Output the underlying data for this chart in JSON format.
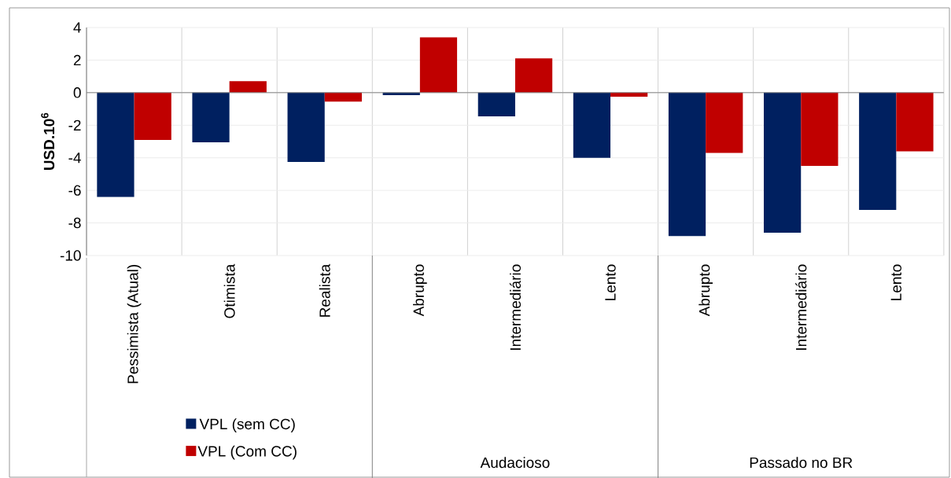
{
  "chart_data": {
    "type": "bar",
    "ylabel": "USD.10$^{6}$",
    "categories": [
      "Pessimista (Atual)",
      "Otimista",
      "Realista",
      "Abrupto",
      "Intermediário",
      "Lento",
      "Abrupto",
      "Intermediário",
      "Lento"
    ],
    "series": [
      {
        "name": "VPL (sem CC)",
        "color": "#002060",
        "values": [
          -6.4,
          -3.05,
          -4.25,
          -0.15,
          -1.45,
          -4.0,
          -8.8,
          -8.6,
          -7.2
        ]
      },
      {
        "name": "VPL (Com CC)",
        "color": "#c00000",
        "values": [
          -2.9,
          0.7,
          -0.55,
          3.4,
          2.1,
          -0.25,
          -3.7,
          -4.5,
          -3.6
        ]
      }
    ],
    "ylim": [
      -10,
      4
    ],
    "yticks": [
      -10,
      -8,
      -6,
      -4,
      -2,
      0,
      2,
      4
    ],
    "grid": true,
    "legend": "bottom left",
    "annotations": [
      "Audacioso",
      "Passado no BR"
    ]
  }
}
